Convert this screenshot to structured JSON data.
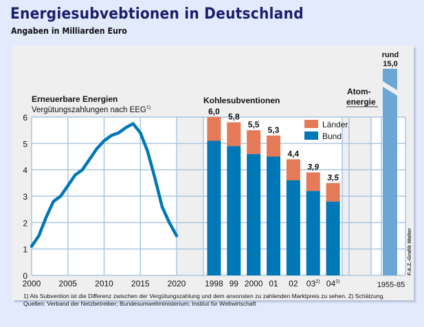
{
  "header": {
    "title": "Energiesubvebtionen in Deutschland",
    "subtitle": "Angaben in Milliarden Euro"
  },
  "colors": {
    "line": "#0077b6",
    "bund": "#0077b6",
    "laender": "#e47a58",
    "atom": "#6aa6d6",
    "grid": "#a9c6e0"
  },
  "chart_data": [
    {
      "type": "line",
      "title": "Erneuerbare Energien",
      "subtitle": "Vergütungszahlungen nach EEG",
      "subtitle_footnote": "1)",
      "x": [
        2000,
        2001,
        2002,
        2003,
        2004,
        2005,
        2006,
        2007,
        2008,
        2009,
        2010,
        2011,
        2012,
        2013,
        2014,
        2015,
        2016,
        2017,
        2018,
        2019,
        2020
      ],
      "values": [
        1.1,
        1.5,
        2.2,
        2.8,
        3.0,
        3.4,
        3.8,
        4.0,
        4.4,
        4.8,
        5.1,
        5.3,
        5.4,
        5.6,
        5.75,
        5.4,
        4.7,
        3.7,
        2.6,
        2.0,
        1.5
      ],
      "xticks": [
        "2000",
        "2005",
        "2010",
        "2015",
        "2020"
      ],
      "xlim": [
        2000,
        2020
      ],
      "yticks": [
        "0",
        "1",
        "2",
        "3",
        "4",
        "5",
        "6"
      ],
      "ylim": [
        0,
        6
      ],
      "grid": true
    },
    {
      "type": "bar",
      "stacked": true,
      "title": "Kohlesubventionen",
      "categories": [
        "1998",
        "99",
        "2000",
        "01",
        "02",
        "03",
        "04"
      ],
      "category_footnotes": [
        "",
        "",
        "",
        "",
        "",
        "2)",
        "2)"
      ],
      "series": [
        {
          "name": "Bund",
          "values": [
            5.1,
            4.9,
            4.6,
            4.5,
            3.6,
            3.2,
            2.8
          ]
        },
        {
          "name": "Länder",
          "values": [
            0.9,
            0.9,
            0.9,
            0.8,
            0.8,
            0.7,
            0.7
          ]
        }
      ],
      "totals": [
        6.0,
        5.8,
        5.5,
        5.3,
        4.4,
        3.9,
        3.5
      ],
      "total_labels": [
        "6,0",
        "5,8",
        "5,5",
        "5,3",
        "4,4",
        "3,9",
        "3,5"
      ],
      "estimated": [
        false,
        false,
        false,
        false,
        false,
        true,
        true
      ],
      "legend": [
        "Länder",
        "Bund"
      ],
      "legend_position": "top-right",
      "ylim": [
        0,
        6
      ]
    },
    {
      "type": "bar",
      "title": "Atom-energie",
      "title_lines": [
        "Atom-",
        "energie"
      ],
      "categories": [
        "1955-85"
      ],
      "values": [
        15.0
      ],
      "value_label_lines": [
        "rund",
        "15,0"
      ],
      "axis_break": true
    }
  ],
  "footer": {
    "note": "1) Als Subvention ist die Differenz zwischen der Vergütungszahlung und dem ansonsten zu zahlenden Marktpreis zu sehen.  2) Schätzung.",
    "sources": "Quellen: Verband der Netzbetreiber; Bundesumweltministerium; Institut für Weltwirtschaft",
    "credit": "F.A.Z.-Grafik Walter"
  }
}
